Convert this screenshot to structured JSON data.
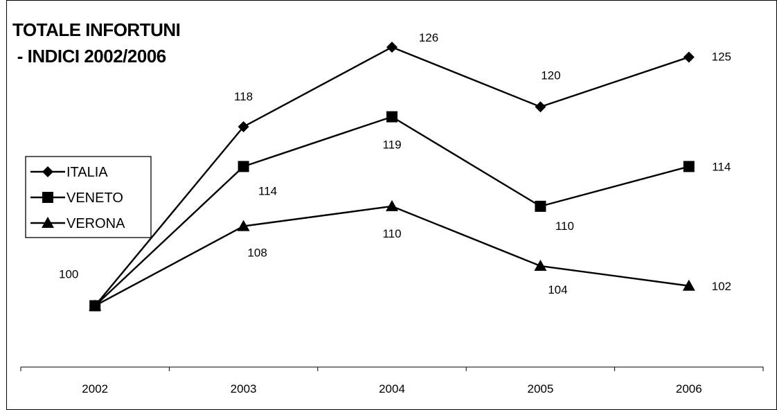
{
  "chart_data": {
    "type": "line",
    "title_lines": [
      "TOTALE INFORTUNI",
      " - INDICI 2002/2006"
    ],
    "categories": [
      "2002",
      "2003",
      "2004",
      "2005",
      "2006"
    ],
    "series": [
      {
        "name": "ITALIA",
        "marker": "diamond",
        "values": [
          100,
          118,
          126,
          120,
          125
        ],
        "labels": [
          "100",
          "118",
          "126",
          "120",
          "125"
        ]
      },
      {
        "name": "VENETO",
        "marker": "square",
        "values": [
          100,
          114,
          119,
          110,
          114
        ],
        "labels": [
          "",
          "114",
          "119",
          "110",
          "114"
        ]
      },
      {
        "name": "VERONA",
        "marker": "triangle",
        "values": [
          100,
          108,
          110,
          104,
          102
        ],
        "labels": [
          "",
          "108",
          "110",
          "104",
          "102"
        ]
      }
    ],
    "ylim": [
      93,
      129
    ],
    "grid": false,
    "legend_position": "left",
    "line_color": "#000000"
  }
}
